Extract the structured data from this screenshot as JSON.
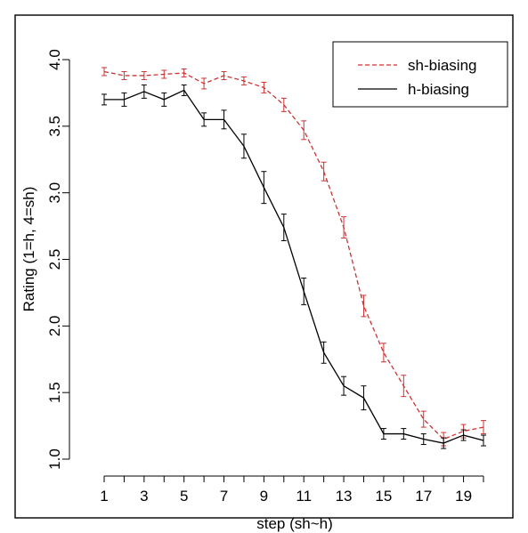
{
  "chart_data": {
    "type": "line",
    "title": "",
    "xlabel": "step (sh~h)",
    "ylabel": "Rating (1=h, 4=sh)",
    "xlim": [
      1,
      20
    ],
    "ylim": [
      1.0,
      4.0
    ],
    "x_ticks": [
      1,
      3,
      5,
      7,
      9,
      11,
      13,
      15,
      17,
      19
    ],
    "y_ticks": [
      "1.0",
      "1.5",
      "2.0",
      "2.5",
      "3.0",
      "3.5",
      "4.0"
    ],
    "grid": false,
    "legend_position": "top-right",
    "x": [
      1,
      2,
      3,
      4,
      5,
      6,
      7,
      8,
      9,
      10,
      11,
      12,
      13,
      14,
      15,
      16,
      17,
      18,
      19,
      20
    ],
    "series": [
      {
        "name": "sh-biasing",
        "color": "#cc3333",
        "line_style": "dashed",
        "values": [
          3.91,
          3.88,
          3.88,
          3.89,
          3.9,
          3.82,
          3.88,
          3.84,
          3.79,
          3.66,
          3.47,
          3.16,
          2.74,
          2.15,
          1.8,
          1.55,
          1.3,
          1.15,
          1.21,
          1.24
        ],
        "error": [
          0.03,
          0.03,
          0.03,
          0.03,
          0.03,
          0.04,
          0.03,
          0.03,
          0.04,
          0.05,
          0.07,
          0.07,
          0.08,
          0.08,
          0.07,
          0.08,
          0.06,
          0.05,
          0.05,
          0.05
        ]
      },
      {
        "name": "h-biasing",
        "color": "#000000",
        "line_style": "solid",
        "values": [
          3.7,
          3.7,
          3.76,
          3.7,
          3.77,
          3.55,
          3.55,
          3.35,
          3.04,
          2.74,
          2.26,
          1.8,
          1.55,
          1.46,
          1.19,
          1.19,
          1.15,
          1.12,
          1.18,
          1.14
        ],
        "error": [
          0.04,
          0.05,
          0.05,
          0.05,
          0.04,
          0.05,
          0.07,
          0.09,
          0.12,
          0.1,
          0.1,
          0.08,
          0.07,
          0.09,
          0.04,
          0.04,
          0.04,
          0.04,
          0.04,
          0.04
        ]
      }
    ]
  }
}
